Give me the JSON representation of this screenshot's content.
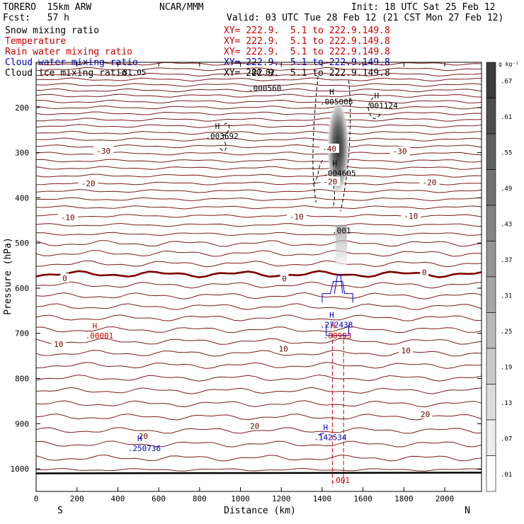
{
  "header": {
    "model": "TORERO  15km ARW",
    "center": "NCAR/MMM",
    "init": "Init: 18 UTC Sat 25 Feb 12",
    "fcst": "Fcst:   57 h",
    "valid": "Valid: 03 UTC Tue 28 Feb 12 (21 CST Mon 27 Feb 12)"
  },
  "fields": [
    {
      "label": "Snow mixing ratio",
      "xy": "XY= 222.9.  5.1 to 222.9.149.8",
      "color": "#000000"
    },
    {
      "label": "Temperature",
      "xy": "XY= 222.9.  5.1 to 222.9.149.8",
      "color": "#cc0000"
    },
    {
      "label": "Rain water mixing ratio",
      "xy": "XY= 222.9.  5.1 to 222.9.149.8",
      "color": "#cc0000"
    },
    {
      "label": "Cloud water mixing ratio",
      "xy": "XY= 222.9.  5.1 to 222.9.149.8",
      "color": "#0000cc"
    },
    {
      "label": "Cloud ice mixing ratio",
      "xy": "XY= 222.9.  5.1 to 222.9.149.8",
      "color": "#000000"
    }
  ],
  "chart_data": {
    "type": "cross-section contour plot",
    "xlabel": "Distance (km)",
    "ylabel": "Pressure (hPa)",
    "xlim": [
      0,
      2180
    ],
    "ylim": [
      1050,
      100
    ],
    "x_ticks": [
      0,
      200,
      400,
      600,
      800,
      1000,
      1200,
      1400,
      1600,
      1800,
      2000
    ],
    "y_ticks": [
      200,
      300,
      400,
      500,
      600,
      700,
      800,
      900,
      1000
    ],
    "endpoints": {
      "left": "S",
      "right": "N"
    },
    "colorbar": {
      "unit": "g kg⁻¹",
      "labels": [
        ".67",
        ".61",
        ".55",
        ".49",
        ".43",
        ".37",
        ".31",
        ".25",
        ".19",
        ".13",
        ".07",
        ".01"
      ]
    },
    "temperature_contour_labels": [
      {
        "text": "-30",
        "x": 330,
        "p": 296,
        "side": "left"
      },
      {
        "text": "-20",
        "x": 255,
        "p": 368,
        "side": "left"
      },
      {
        "text": "-10",
        "x": 155,
        "p": 443,
        "side": "left"
      },
      {
        "text": "-10",
        "x": 1275,
        "p": 442,
        "side": "left"
      },
      {
        "text": "-10",
        "x": 1835,
        "p": 440,
        "side": "left"
      },
      {
        "text": "-20",
        "x": 1925,
        "p": 366,
        "side": "left"
      },
      {
        "text": "-30",
        "x": 1780,
        "p": 297,
        "side": "left"
      },
      {
        "text": "-40",
        "x": 1435,
        "p": 291,
        "side": "left"
      },
      {
        "text": "-20",
        "x": 1440,
        "p": 364,
        "side": "left"
      },
      {
        "text": "0",
        "x": 140,
        "p": 578,
        "side": "left"
      },
      {
        "text": "0",
        "x": 1215,
        "p": 579,
        "side": "left"
      },
      {
        "text": "0",
        "x": 1900,
        "p": 565,
        "side": "left"
      },
      {
        "text": "10",
        "x": 110,
        "p": 724,
        "side": "left"
      },
      {
        "text": "10",
        "x": 1210,
        "p": 734,
        "side": "left"
      },
      {
        "text": "10",
        "x": 1810,
        "p": 738,
        "side": "left"
      },
      {
        "text": "20",
        "x": 1070,
        "p": 905,
        "side": "left"
      },
      {
        "text": "20",
        "x": 1905,
        "p": 879,
        "side": "left"
      },
      {
        "text": "20",
        "x": 525,
        "p": 928,
        "side": "left"
      }
    ],
    "temperature_top_labels": [
      "-81.05",
      "-80.82"
    ],
    "maxima": [
      {
        "label": "H",
        "value": ".003692",
        "x": 910,
        "p": 263,
        "field": "snow"
      },
      {
        "label": "H",
        "value": ".005006",
        "x": 1470,
        "p": 187,
        "field": "snow"
      },
      {
        "label": "H",
        "value": ".001124",
        "x": 1690,
        "p": 196,
        "field": "snow"
      },
      {
        "label": "",
        "value": ".000560",
        "x": 1120,
        "p": 157,
        "field": "snow"
      },
      {
        "label": "H",
        "value": ".004605",
        "x": 1485,
        "p": 345,
        "field": "cloud_ice"
      },
      {
        "label": "",
        "value": ".001",
        "x": 1495,
        "p": 472,
        "field": "cloud_ice"
      },
      {
        "label": "H",
        "value": ".00001",
        "x": 310,
        "p": 705,
        "field": "rain"
      },
      {
        "label": "H",
        "value": ".00993",
        "x": 1475,
        "p": 705,
        "field": "rain"
      },
      {
        "label": "",
        "value": ".001",
        "x": 1490,
        "p": 1025,
        "field": "rain"
      },
      {
        "label": "H",
        "value": ".272438",
        "x": 1470,
        "p": 681,
        "field": "cloud_water"
      },
      {
        "label": "H",
        "value": ".142534",
        "x": 1440,
        "p": 930,
        "field": "cloud_water"
      },
      {
        "label": "H",
        "value": ".250736",
        "x": 530,
        "p": 954,
        "field": "cloud_water"
      }
    ]
  }
}
